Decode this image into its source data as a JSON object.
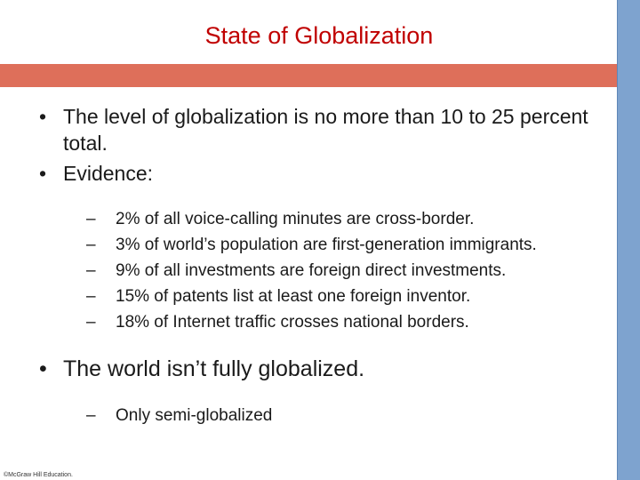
{
  "title": "State of Globalization",
  "bullets": {
    "b1": "The level of globalization is no more than 10 to 25 percent total.",
    "b2": "Evidence:",
    "evidence": [
      "2% of all voice-calling minutes are cross-border.",
      "3% of world’s population are first-generation immigrants.",
      "9% of all investments are foreign direct investments.",
      "15% of patents list at least one foreign inventor.",
      "18% of Internet traffic crosses national borders."
    ],
    "b3": "The world isn’t fully globalized.",
    "sub": "Only semi-globalized"
  },
  "symbols": {
    "bullet": "•",
    "dash": "–"
  },
  "colors": {
    "title": "#c00000",
    "band": "#de6f5a",
    "side_bar": "#7ea3cf"
  },
  "footer": "©McGraw Hill Education."
}
